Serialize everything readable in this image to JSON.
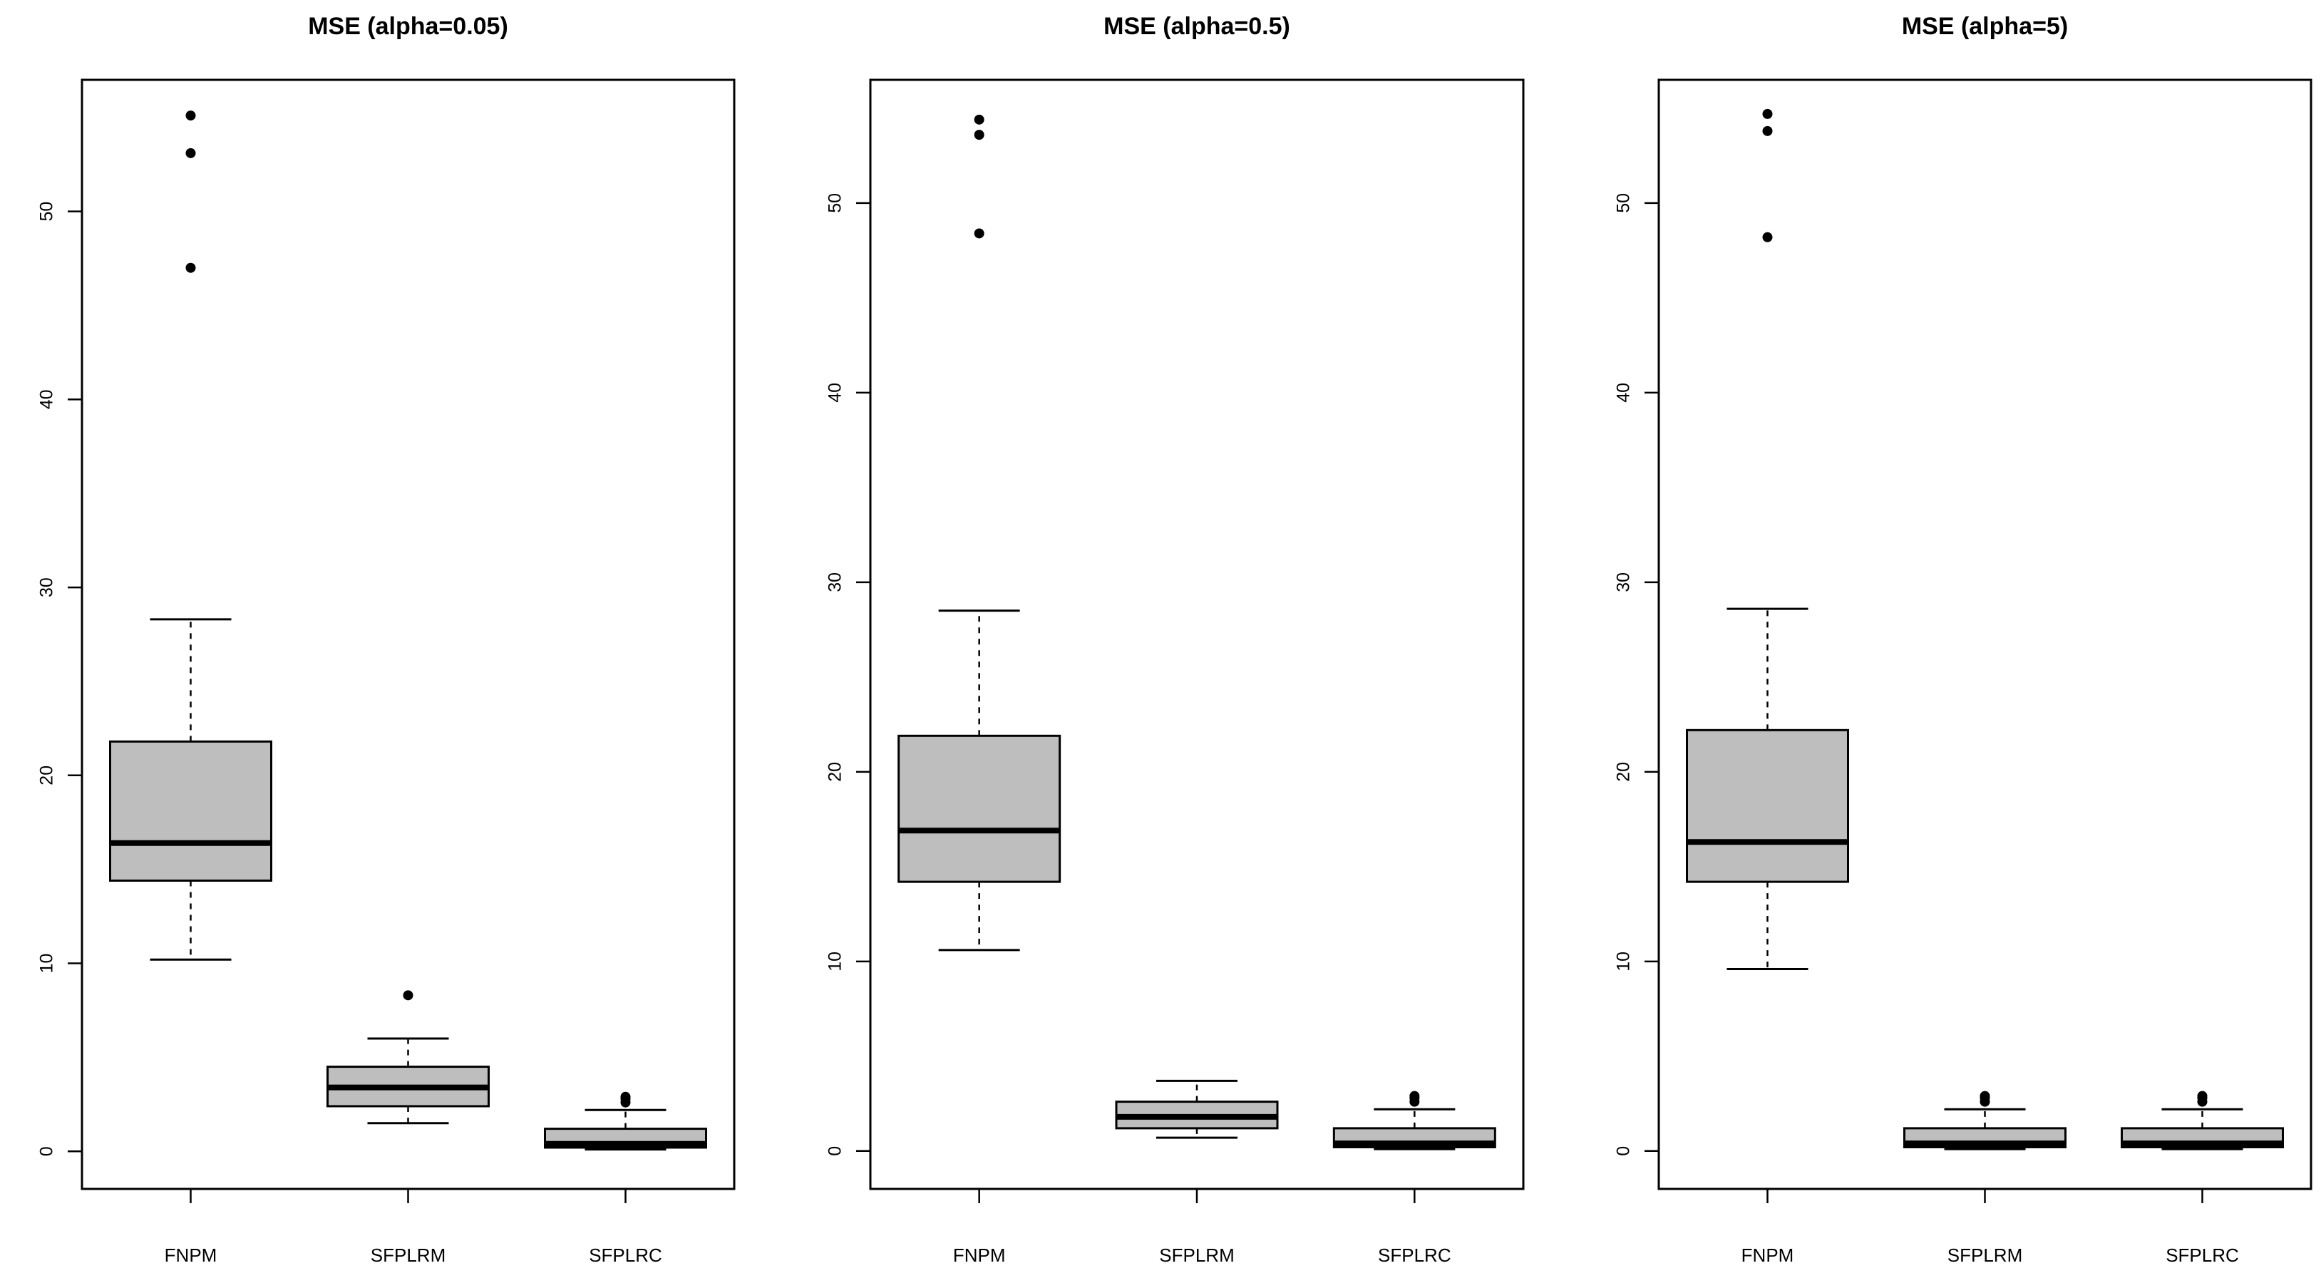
{
  "colors": {
    "box_fill": "#bebebe",
    "stroke": "#000000",
    "background": "#ffffff"
  },
  "chart_data": [
    {
      "type": "boxplot",
      "title": "MSE (alpha=0.05)",
      "xlabel": "",
      "ylabel": "",
      "ylim": [
        -2,
        57
      ],
      "yticks": [
        0,
        10,
        20,
        30,
        40,
        50
      ],
      "grid": false,
      "categories": [
        "FNPM",
        "SFPLRM",
        "SFPLRC"
      ],
      "boxes": [
        {
          "category": "FNPM",
          "whisker_low": 10.2,
          "q1": 14.4,
          "median": 16.4,
          "q3": 21.8,
          "whisker_high": 28.3,
          "outliers": [
            47.0,
            53.1,
            55.1
          ]
        },
        {
          "category": "SFPLRM",
          "whisker_low": 1.5,
          "q1": 2.4,
          "median": 3.4,
          "q3": 4.5,
          "whisker_high": 6.0,
          "outliers": [
            8.3
          ]
        },
        {
          "category": "SFPLRC",
          "whisker_low": 0.1,
          "q1": 0.2,
          "median": 0.4,
          "q3": 1.2,
          "whisker_high": 2.2,
          "outliers": [
            2.6,
            2.8,
            2.9
          ]
        }
      ]
    },
    {
      "type": "boxplot",
      "title": "MSE (alpha=0.5)",
      "xlabel": "",
      "ylabel": "",
      "ylim": [
        -2,
        56.5
      ],
      "yticks": [
        0,
        10,
        20,
        30,
        40,
        50
      ],
      "grid": false,
      "categories": [
        "FNPM",
        "SFPLRM",
        "SFPLRC"
      ],
      "boxes": [
        {
          "category": "FNPM",
          "whisker_low": 10.6,
          "q1": 14.2,
          "median": 16.9,
          "q3": 21.9,
          "whisker_high": 28.5,
          "outliers": [
            48.4,
            53.6,
            54.4
          ]
        },
        {
          "category": "SFPLRM",
          "whisker_low": 0.7,
          "q1": 1.2,
          "median": 1.8,
          "q3": 2.6,
          "whisker_high": 3.7,
          "outliers": []
        },
        {
          "category": "SFPLRC",
          "whisker_low": 0.1,
          "q1": 0.2,
          "median": 0.4,
          "q3": 1.2,
          "whisker_high": 2.2,
          "outliers": [
            2.6,
            2.8,
            2.9
          ]
        }
      ]
    },
    {
      "type": "boxplot",
      "title": "MSE (alpha=5)",
      "xlabel": "",
      "ylabel": "",
      "ylim": [
        -2,
        56.5
      ],
      "yticks": [
        0,
        10,
        20,
        30,
        40,
        50
      ],
      "grid": false,
      "categories": [
        "FNPM",
        "SFPLRM",
        "SFPLRC"
      ],
      "boxes": [
        {
          "category": "FNPM",
          "whisker_low": 9.6,
          "q1": 14.2,
          "median": 16.3,
          "q3": 22.2,
          "whisker_high": 28.6,
          "outliers": [
            48.2,
            53.8,
            54.7
          ]
        },
        {
          "category": "SFPLRM",
          "whisker_low": 0.1,
          "q1": 0.2,
          "median": 0.4,
          "q3": 1.2,
          "whisker_high": 2.2,
          "outliers": [
            2.6,
            2.8,
            2.9
          ]
        },
        {
          "category": "SFPLRC",
          "whisker_low": 0.1,
          "q1": 0.2,
          "median": 0.4,
          "q3": 1.2,
          "whisker_high": 2.2,
          "outliers": [
            2.6,
            2.8,
            2.9
          ]
        }
      ]
    }
  ]
}
